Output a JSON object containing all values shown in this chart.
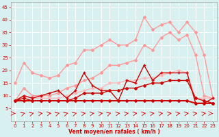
{
  "x": [
    0,
    1,
    2,
    3,
    4,
    5,
    6,
    7,
    8,
    9,
    10,
    11,
    12,
    13,
    14,
    15,
    16,
    17,
    18,
    19,
    20,
    21,
    22,
    23
  ],
  "lines": [
    {
      "label": "light_pink_top",
      "y": [
        15,
        23,
        19,
        18,
        17,
        18,
        22,
        23,
        28,
        28,
        30,
        32,
        30,
        30,
        32,
        41,
        36,
        38,
        39,
        35,
        39,
        35,
        26,
        9
      ],
      "color": "#ff9999",
      "lw": 1.0,
      "marker": "D",
      "ms": 2.0,
      "zorder": 3
    },
    {
      "label": "light_pink_mid",
      "y": [
        8,
        13,
        10,
        10,
        10,
        11,
        13,
        14,
        16,
        17,
        19,
        22,
        22,
        23,
        24,
        30,
        28,
        33,
        35,
        32,
        34,
        26,
        10,
        9
      ],
      "color": "#ff9999",
      "lw": 1.0,
      "marker": "D",
      "ms": 2.0,
      "zorder": 3
    },
    {
      "label": "light_pink_lower",
      "y": [
        8,
        10,
        9,
        9,
        9,
        9,
        10,
        11,
        12,
        13,
        13,
        15,
        15,
        16,
        16,
        17,
        17,
        18,
        19,
        20,
        19,
        9,
        9,
        9
      ],
      "color": "#ffbbbb",
      "lw": 1.0,
      "marker": "D",
      "ms": 2.0,
      "zorder": 3
    },
    {
      "label": "dark_red_jagged",
      "y": [
        8,
        10,
        9,
        10,
        11,
        12,
        9,
        12,
        19,
        14,
        12,
        12,
        8,
        16,
        15,
        22,
        16,
        19,
        19,
        19,
        19,
        7,
        7,
        9
      ],
      "color": "#cc0000",
      "lw": 1.0,
      "marker": "+",
      "ms": 3.5,
      "zorder": 4
    },
    {
      "label": "dark_red_mid_trend",
      "y": [
        8,
        9,
        8,
        8,
        8,
        8,
        8,
        9,
        11,
        11,
        11,
        12,
        12,
        13,
        13,
        14,
        15,
        15,
        16,
        16,
        16,
        9,
        8,
        7
      ],
      "color": "#cc0000",
      "lw": 1.0,
      "marker": "D",
      "ms": 2.0,
      "zorder": 4
    },
    {
      "label": "dark_red_flat_bottom",
      "y": [
        8,
        8,
        8,
        8,
        8,
        8,
        8,
        8,
        8,
        8,
        8,
        8,
        8,
        8,
        8,
        8,
        8,
        8,
        8,
        8,
        8,
        7,
        7,
        7
      ],
      "color": "#cc0000",
      "lw": 1.5,
      "marker": "D",
      "ms": 2.0,
      "zorder": 4
    }
  ],
  "xlabel": "Vent moyen/en rafales ( km/h )",
  "ylim": [
    0,
    47
  ],
  "yticks": [
    5,
    10,
    15,
    20,
    25,
    30,
    35,
    40,
    45
  ],
  "xticks": [
    0,
    1,
    2,
    3,
    4,
    5,
    6,
    7,
    8,
    9,
    10,
    11,
    12,
    13,
    14,
    15,
    16,
    17,
    18,
    19,
    20,
    21,
    22,
    23
  ],
  "bg_color": "#d8f0f0",
  "grid_color": "#ffffff",
  "tick_color": "#dd0000",
  "label_color": "#dd0000",
  "arrow_color": "#dd0000",
  "figsize": [
    3.2,
    2.0
  ],
  "dpi": 100
}
